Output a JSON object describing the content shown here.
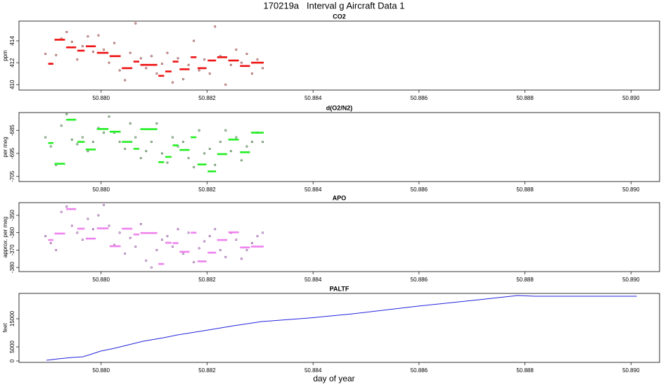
{
  "title": "170219a   Interval g Aircraft Data 1",
  "xlabel": "day of year",
  "chart_data": [
    {
      "type": "scatter",
      "title": "CO2",
      "ylabel": "ppm",
      "xlim": [
        50.87845,
        50.89054
      ],
      "ylim": [
        409.5,
        415.8
      ],
      "yticks": [
        410,
        412,
        414
      ],
      "xticks": [
        {
          "value": 50.88,
          "label": "50.880"
        },
        {
          "value": 50.882,
          "label": "50.882"
        },
        {
          "value": 50.884,
          "label": "50.884"
        },
        {
          "value": 50.886,
          "label": "50.886"
        },
        {
          "value": 50.888,
          "label": "50.888"
        },
        {
          "value": 50.89,
          "label": "50.890"
        }
      ],
      "series": [
        {
          "color": "#7a1010",
          "x": [
            50.87895,
            50.87905,
            50.87915,
            50.87925,
            50.87935,
            50.87945,
            50.87955,
            50.87965,
            50.87975,
            50.87985,
            50.87995,
            50.88005,
            50.88015,
            50.88025,
            50.88035,
            50.88045,
            50.88055,
            50.88065,
            50.88075,
            50.88085,
            50.88095,
            50.88105,
            50.88115,
            50.88125,
            50.88135,
            50.88145,
            50.88155,
            50.88165,
            50.88175,
            50.88185,
            50.88195,
            50.88205,
            50.88215,
            50.88225,
            50.88235,
            50.88245,
            50.88255,
            50.88265,
            50.88275,
            50.88285,
            50.88295,
            50.88305
          ],
          "values": [
            412.8,
            411.9,
            412.7,
            414.2,
            414.8,
            413.9,
            412.3,
            413.5,
            414.4,
            413.0,
            414.5,
            413.2,
            412.0,
            413.8,
            411.3,
            410.4,
            412.9,
            415.6,
            412.4,
            411.5,
            412.6,
            411.0,
            411.9,
            412.9,
            410.2,
            412.4,
            410.5,
            411.8,
            414.0,
            411.3,
            412.3,
            411.0,
            415.3,
            412.6,
            410.0,
            411.8,
            413.2,
            412.0,
            412.8,
            411.0,
            412.3,
            411.5
          ]
        },
        {
          "color": "#ee1111",
          "bins": [
            50.87899,
            50.87911,
            50.87933,
            50.87954,
            50.8797,
            50.87991,
            50.88015,
            50.88038,
            50.8806,
            50.88073,
            50.88107,
            50.8812,
            50.88134,
            50.88147,
            50.88168,
            50.88181,
            50.882,
            50.88218,
            50.88239,
            50.88261,
            50.88282,
            50.88308
          ],
          "values": [
            411.9,
            414.1,
            413.4,
            413.1,
            413.5,
            412.9,
            412.6,
            411.5,
            412.1,
            411.8,
            410.8,
            411.2,
            412.1,
            411.4,
            412.5,
            411.5,
            412.2,
            412.5,
            412.2,
            411.7,
            412.0
          ]
        }
      ]
    },
    {
      "type": "scatter",
      "title": "d(O2/N2)",
      "ylabel": "per meg",
      "xlim": [
        50.87845,
        50.89054
      ],
      "ylim": [
        -707.2,
        -677.3
      ],
      "yticks": [
        -705,
        -695,
        -685
      ],
      "xticks": [
        {
          "value": 50.88,
          "label": "50.880"
        },
        {
          "value": 50.882,
          "label": "50.882"
        },
        {
          "value": 50.884,
          "label": "50.884"
        },
        {
          "value": 50.886,
          "label": "50.886"
        },
        {
          "value": 50.888,
          "label": "50.888"
        },
        {
          "value": 50.89,
          "label": "50.890"
        }
      ],
      "series": [
        {
          "color": "#115511",
          "x": [
            50.87895,
            50.87905,
            50.87915,
            50.87925,
            50.87935,
            50.87945,
            50.87955,
            50.87965,
            50.87975,
            50.87985,
            50.87995,
            50.88005,
            50.88015,
            50.88025,
            50.88035,
            50.88045,
            50.88055,
            50.88065,
            50.88075,
            50.88085,
            50.88095,
            50.88105,
            50.88115,
            50.88125,
            50.88135,
            50.88145,
            50.88155,
            50.88165,
            50.88175,
            50.88185,
            50.88195,
            50.88205,
            50.88215,
            50.88225,
            50.88235,
            50.88245,
            50.88255,
            50.88265,
            50.88275,
            50.88285,
            50.88295,
            50.88305
          ],
          "values": [
            -688,
            -692,
            -700,
            -683,
            -678,
            -689,
            -691,
            -688,
            -694,
            -690,
            -684,
            -686,
            -679,
            -686,
            -690,
            -693,
            -682,
            -688,
            -697,
            -694,
            -690,
            -682,
            -695,
            -699,
            -688,
            -692,
            -690,
            -697,
            -701,
            -685,
            -695,
            -693,
            -700,
            -690,
            -685,
            -694,
            -688,
            -698,
            -692,
            -690,
            -686,
            -690
          ]
        },
        {
          "color": "#22ee22",
          "bins": [
            50.87899,
            50.87911,
            50.87933,
            50.87954,
            50.8797,
            50.87991,
            50.88015,
            50.88038,
            50.8806,
            50.88073,
            50.88107,
            50.8812,
            50.88134,
            50.88147,
            50.88168,
            50.88181,
            50.882,
            50.88218,
            50.88239,
            50.88261,
            50.88282,
            50.88308
          ],
          "values": [
            -690.5,
            -699.5,
            -680.4,
            -690.0,
            -693.3,
            -684.4,
            -685.6,
            -690.0,
            -693.0,
            -684.5,
            -698.8,
            -696.5,
            -691.5,
            -693.5,
            -688.0,
            -699.8,
            -702.8,
            -695.3,
            -689.0,
            -694.5,
            -686.0
          ]
        }
      ]
    },
    {
      "type": "scatter",
      "title": "APO",
      "ylabel": "approx. per meg",
      "xlim": [
        50.87845,
        50.89054
      ],
      "ylim": [
        -382.4,
        -342.7
      ],
      "yticks": [
        -380,
        -370,
        -360,
        -350
      ],
      "xticks": [
        {
          "value": 50.88,
          "label": "50.880"
        },
        {
          "value": 50.882,
          "label": "50.882"
        },
        {
          "value": 50.884,
          "label": "50.884"
        },
        {
          "value": 50.886,
          "label": "50.886"
        },
        {
          "value": 50.888,
          "label": "50.888"
        },
        {
          "value": 50.89,
          "label": "50.890"
        }
      ],
      "series": [
        {
          "color": "#7a2a8a",
          "x": [
            50.87895,
            50.87905,
            50.87915,
            50.87925,
            50.87935,
            50.87945,
            50.87955,
            50.87965,
            50.87975,
            50.87985,
            50.87995,
            50.88005,
            50.88015,
            50.88025,
            50.88035,
            50.88045,
            50.88055,
            50.88065,
            50.88075,
            50.88085,
            50.88095,
            50.88105,
            50.88115,
            50.88125,
            50.88135,
            50.88145,
            50.88155,
            50.88165,
            50.88175,
            50.88185,
            50.88195,
            50.88205,
            50.88215,
            50.88225,
            50.88235,
            50.88245,
            50.88255,
            50.88265,
            50.88275,
            50.88285,
            50.88295,
            50.88305
          ],
          "values": [
            -362,
            -366,
            -370,
            -348,
            -345,
            -356,
            -360,
            -364,
            -352,
            -358,
            -350,
            -344,
            -356,
            -367,
            -360,
            -372,
            -363,
            -368,
            -355,
            -376,
            -380,
            -370,
            -364,
            -362,
            -368,
            -358,
            -372,
            -360,
            -377,
            -369,
            -365,
            -362,
            -358,
            -370,
            -374,
            -360,
            -364,
            -375,
            -370,
            -366,
            -362,
            -360
          ]
        },
        {
          "color": "#ee82ee",
          "bins": [
            50.87899,
            50.87911,
            50.87933,
            50.87954,
            50.8797,
            50.87991,
            50.88015,
            50.88038,
            50.8806,
            50.88073,
            50.88107,
            50.8812,
            50.88134,
            50.88147,
            50.88168,
            50.88181,
            50.882,
            50.88218,
            50.88239,
            50.88261,
            50.88282,
            50.88308
          ],
          "values": [
            -364.2,
            -360.5,
            -346.4,
            -357.7,
            -363.4,
            -357.5,
            -367.8,
            -357.7,
            -361.0,
            -360.2,
            -378.0,
            -365.8,
            -366.0,
            -371.0,
            -360.0,
            -376.5,
            -371.5,
            -364.2,
            -359.8,
            -368.5,
            -368.0
          ]
        }
      ]
    },
    {
      "type": "line",
      "title": "PALTF",
      "ylabel": "feet",
      "xlim": [
        50.87845,
        50.89054
      ],
      "ylim": [
        -500,
        24000
      ],
      "yticks": [
        0,
        5000,
        15000
      ],
      "xticks": [
        {
          "value": 50.88,
          "label": "50.880"
        },
        {
          "value": 50.882,
          "label": "50.882"
        },
        {
          "value": 50.884,
          "label": "50.884"
        },
        {
          "value": 50.886,
          "label": "50.886"
        },
        {
          "value": 50.888,
          "label": "50.888"
        },
        {
          "value": 50.89,
          "label": "50.890"
        }
      ],
      "series": [
        {
          "color": "#2222dd",
          "x": [
            50.87897,
            50.87919,
            50.87946,
            50.87966,
            50.87979,
            50.87999,
            50.88025,
            50.88052,
            50.88079,
            50.88118,
            50.88144,
            50.88194,
            50.8825,
            50.88303,
            50.88356,
            50.88392,
            50.88475,
            50.88599,
            50.88713,
            50.88786,
            50.88819,
            50.89011
          ],
          "values": [
            250,
            750,
            1250,
            1500,
            2250,
            3500,
            4500,
            5750,
            7000,
            8250,
            9250,
            10750,
            12500,
            14000,
            14750,
            15250,
            16750,
            19500,
            21750,
            23250,
            23000,
            23000
          ]
        }
      ]
    }
  ]
}
